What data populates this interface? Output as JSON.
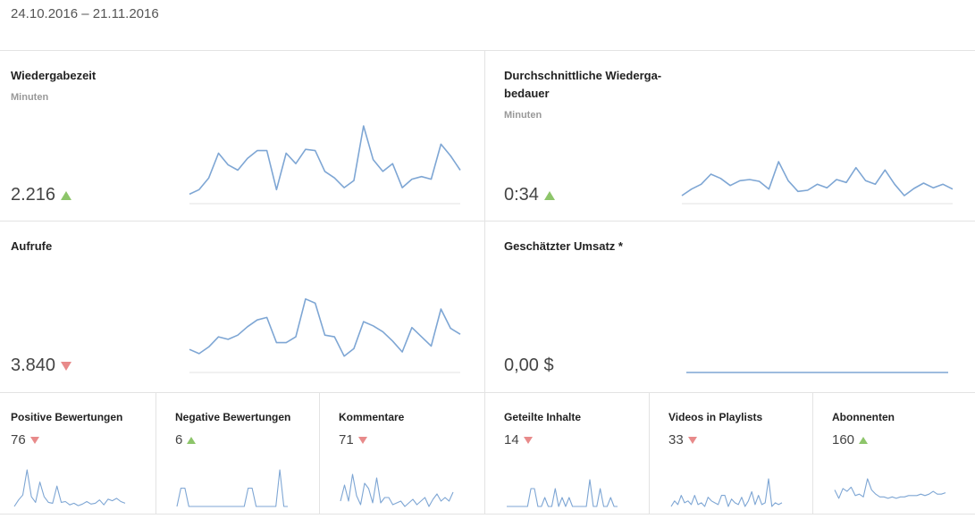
{
  "date_range": "24.10.2016 – 21.11.2016",
  "colors": {
    "line": "#7ea6d4",
    "up": "#8dc56a",
    "down": "#e88a8a",
    "divider": "#e3e3e3"
  },
  "cards": [
    {
      "id": "wiedergabezeit",
      "title": "Wiedergabezeit",
      "subtitle": "Minuten",
      "value": "2.216",
      "trend": "up",
      "chart_data": {
        "type": "line",
        "values": [
          5,
          12,
          30,
          68,
          50,
          42,
          60,
          72,
          72,
          12,
          68,
          52,
          74,
          72,
          40,
          30,
          15,
          26,
          110,
          58,
          40,
          52,
          15,
          28,
          32,
          28,
          82,
          64,
          42
        ]
      }
    },
    {
      "id": "durchschnittliche-wiedergabedauer",
      "title_lines": [
        "Durchschnittliche Wiederga-",
        "bedauer"
      ],
      "subtitle": "Minuten",
      "value": "0:34",
      "trend": "up",
      "chart_data": {
        "type": "line",
        "values": [
          3,
          14,
          22,
          39,
          32,
          20,
          28,
          30,
          27,
          14,
          60,
          28,
          10,
          12,
          22,
          16,
          30,
          25,
          50,
          28,
          22,
          46,
          22,
          3,
          15,
          24,
          16,
          22,
          14
        ]
      }
    },
    {
      "id": "aufrufe",
      "title": "Aufrufe",
      "subtitle": "",
      "value": "3.840",
      "trend": "down",
      "chart_data": {
        "type": "line",
        "values": [
          45,
          40,
          48,
          60,
          57,
          62,
          72,
          80,
          83,
          53,
          53,
          60,
          105,
          100,
          62,
          60,
          37,
          46,
          78,
          73,
          66,
          55,
          42,
          71,
          60,
          49,
          93,
          70,
          63
        ]
      }
    },
    {
      "id": "geschaetzter-umsatz",
      "title": "Geschätzter Umsatz *",
      "subtitle": "",
      "value": "0,00 $",
      "trend": "none",
      "chart_data": {
        "type": "line",
        "values": [
          0,
          0,
          0,
          0,
          0,
          0,
          0,
          0,
          0,
          0,
          0,
          0,
          0,
          0,
          0,
          0,
          0,
          0,
          0,
          0,
          0,
          0,
          0,
          0,
          0,
          0,
          0,
          0,
          0
        ]
      }
    }
  ],
  "small_cards": [
    {
      "id": "positive-bewertungen",
      "title": "Positive Bewertungen",
      "value": "76",
      "trend": "down",
      "chart_data": {
        "type": "line",
        "values": [
          0,
          8,
          14,
          45,
          12,
          5,
          30,
          12,
          5,
          4,
          25,
          5,
          6,
          2,
          4,
          1,
          3,
          6,
          3,
          4,
          8,
          2,
          9,
          7,
          10,
          6,
          4
        ]
      }
    },
    {
      "id": "negative-bewertungen",
      "title": "Negative Bewertungen",
      "value": "6",
      "trend": "up",
      "chart_data": {
        "type": "line",
        "values": [
          0,
          1,
          1,
          0,
          0,
          0,
          0,
          0,
          0,
          0,
          0,
          0,
          0,
          0,
          0,
          0,
          0,
          0,
          1,
          1,
          0,
          0,
          0,
          0,
          0,
          0,
          2,
          0,
          0
        ]
      }
    },
    {
      "id": "kommentare",
      "title": "Kommentare",
      "value": "71",
      "trend": "down",
      "chart_data": {
        "type": "line",
        "values": [
          3,
          12,
          3,
          18,
          6,
          1,
          13,
          10,
          2,
          16,
          2,
          5,
          5,
          1,
          2,
          3,
          0,
          2,
          4,
          1,
          3,
          5,
          0,
          4,
          7,
          3,
          5,
          3,
          8
        ]
      }
    },
    {
      "id": "geteilte-inhalte",
      "title": "Geteilte Inhalte",
      "value": "14",
      "trend": "down",
      "chart_data": {
        "type": "line",
        "values": [
          0,
          0,
          0,
          0,
          0,
          0,
          0,
          2,
          2,
          0,
          0,
          1,
          0,
          0,
          2,
          0,
          1,
          0,
          1,
          0,
          0,
          0,
          0,
          0,
          3,
          0,
          0,
          2,
          0,
          0,
          1,
          0,
          0
        ]
      }
    },
    {
      "id": "videos-in-playlists",
      "title": "Videos in Playlists",
      "value": "33",
      "trend": "down",
      "chart_data": {
        "type": "line",
        "values": [
          0,
          3,
          1,
          6,
          2,
          3,
          1,
          6,
          1,
          2,
          0,
          5,
          3,
          2,
          1,
          6,
          6,
          0,
          4,
          2,
          1,
          5,
          0,
          3,
          8,
          1,
          6,
          1,
          2,
          15,
          0,
          2,
          1,
          2
        ]
      }
    },
    {
      "id": "abonnenten",
      "title": "Abonnenten",
      "value": "160",
      "trend": "up",
      "chart_data": {
        "type": "line",
        "values": [
          12,
          6,
          13,
          11,
          14,
          8,
          9,
          7,
          20,
          12,
          9,
          7,
          7,
          6,
          7,
          6,
          7,
          7,
          8,
          8,
          8,
          9,
          8,
          9,
          11,
          9,
          9,
          10
        ]
      }
    }
  ]
}
